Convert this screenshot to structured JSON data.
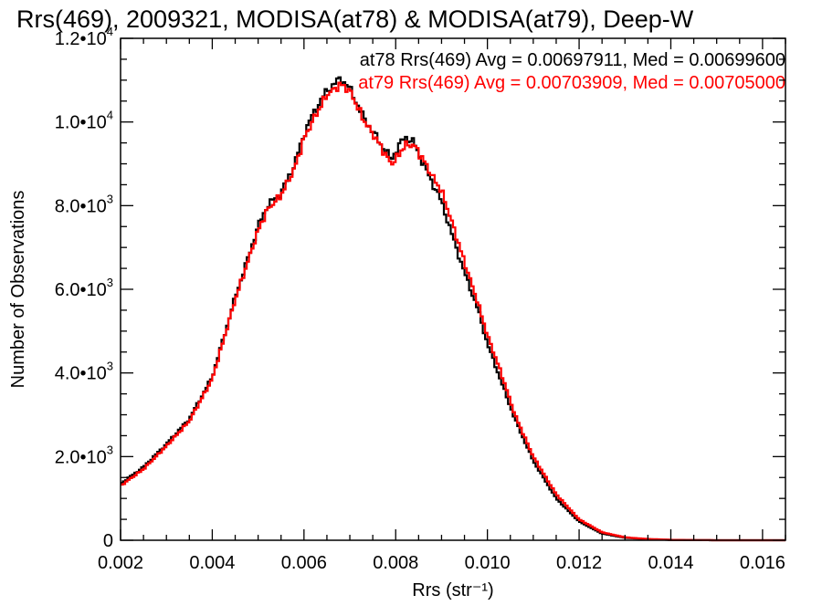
{
  "chart_data": {
    "type": "line",
    "step": true,
    "title": "Rrs(469), 2009321, MODISA(at78) & MODISA(at79), Deep-W",
    "xlabel": "Rrs (str⁻¹)",
    "ylabel": "Number of Observations",
    "xlim": [
      0.002,
      0.0165
    ],
    "ylim": [
      0,
      12000
    ],
    "xticks": [
      {
        "value": 0.002,
        "label": "0.002"
      },
      {
        "value": 0.004,
        "label": "0.004"
      },
      {
        "value": 0.006,
        "label": "0.006"
      },
      {
        "value": 0.008,
        "label": "0.008"
      },
      {
        "value": 0.01,
        "label": "0.010"
      },
      {
        "value": 0.012,
        "label": "0.012"
      },
      {
        "value": 0.014,
        "label": "0.014"
      },
      {
        "value": 0.016,
        "label": "0.016"
      }
    ],
    "yticks": [
      {
        "value": 0,
        "mantissa": "0",
        "exponent": ""
      },
      {
        "value": 2000,
        "mantissa": "2.0•10",
        "exponent": "3"
      },
      {
        "value": 4000,
        "mantissa": "4.0•10",
        "exponent": "3"
      },
      {
        "value": 6000,
        "mantissa": "6.0•10",
        "exponent": "3"
      },
      {
        "value": 8000,
        "mantissa": "8.0•10",
        "exponent": "3"
      },
      {
        "value": 10000,
        "mantissa": "1.0•10",
        "exponent": "4"
      },
      {
        "value": 12000,
        "mantissa": "1.2•10",
        "exponent": "4"
      }
    ],
    "annotations": [
      {
        "text": "at78 Rrs(469) Avg = 0.00697911, Med = 0.00699600",
        "color": "#000000"
      },
      {
        "text": "at79 Rrs(469) Avg = 0.00703909, Med = 0.00705000",
        "color": "#ff0000"
      }
    ],
    "grid": false,
    "series": [
      {
        "name": "at78",
        "color": "#000000",
        "x": [
          0.002,
          0.0025,
          0.003,
          0.0035,
          0.004,
          0.0045,
          0.005,
          0.0052,
          0.0055,
          0.0058,
          0.006,
          0.0062,
          0.0065,
          0.0068,
          0.007,
          0.0073,
          0.0076,
          0.0079,
          0.008,
          0.0082,
          0.0084,
          0.0086,
          0.0088,
          0.009,
          0.0092,
          0.0095,
          0.0098,
          0.01,
          0.0103,
          0.0106,
          0.011,
          0.0115,
          0.012,
          0.0125,
          0.013,
          0.0135,
          0.014,
          0.015,
          0.0165
        ],
        "y": [
          1350,
          1750,
          2300,
          2900,
          3900,
          5800,
          7500,
          8000,
          8300,
          9000,
          9700,
          10200,
          10750,
          11050,
          10800,
          10100,
          9600,
          9100,
          9300,
          9650,
          9500,
          9000,
          8550,
          8100,
          7400,
          6400,
          5500,
          4700,
          3800,
          2900,
          1900,
          1000,
          450,
          160,
          60,
          25,
          8,
          0,
          0
        ]
      },
      {
        "name": "at79",
        "color": "#ff0000",
        "x": [
          0.002,
          0.0025,
          0.003,
          0.0035,
          0.004,
          0.0045,
          0.005,
          0.0052,
          0.0055,
          0.0058,
          0.006,
          0.0062,
          0.0065,
          0.0068,
          0.007,
          0.0073,
          0.0076,
          0.0079,
          0.008,
          0.0082,
          0.0084,
          0.0086,
          0.0088,
          0.009,
          0.0092,
          0.0095,
          0.0098,
          0.01,
          0.0103,
          0.0106,
          0.011,
          0.0115,
          0.012,
          0.0125,
          0.013,
          0.0135,
          0.014,
          0.015,
          0.0165
        ],
        "y": [
          1300,
          1700,
          2250,
          2850,
          3850,
          5750,
          7400,
          7900,
          8250,
          8900,
          9600,
          10050,
          10650,
          10900,
          10750,
          10050,
          9550,
          9000,
          9100,
          9450,
          9450,
          9100,
          8700,
          8350,
          7700,
          6650,
          5650,
          4900,
          4000,
          3000,
          2000,
          1100,
          500,
          190,
          70,
          30,
          10,
          0,
          0
        ]
      }
    ]
  }
}
